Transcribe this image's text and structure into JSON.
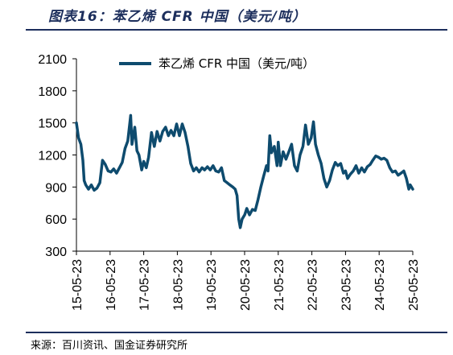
{
  "title": "图表16：苯乙烯 CFR 中国（美元/吨）",
  "source": "来源：百川资讯、国金证券研究所",
  "colors": {
    "line": "#0e4b6e",
    "rule": "#1c2e5c"
  },
  "chart_data": {
    "type": "line",
    "title": "",
    "xlabel": "",
    "ylabel": "",
    "ylim": [
      300,
      2100
    ],
    "yticks": [
      300,
      600,
      900,
      1200,
      1500,
      1800,
      2100
    ],
    "xlim": [
      "15-05-23",
      "25-05-23"
    ],
    "xticks": [
      "15-05-23",
      "16-05-23",
      "17-05-23",
      "18-05-23",
      "19-05-23",
      "20-05-23",
      "21-05-23",
      "22-05-23",
      "23-05-23",
      "24-05-23",
      "25-05-23"
    ],
    "legend_position": "top-left",
    "grid": false,
    "series": [
      {
        "name": "苯乙烯 CFR 中国（美元/吨）",
        "points": [
          [
            "2015-05-23",
            1500
          ],
          [
            "2015-06-15",
            1360
          ],
          [
            "2015-07-10",
            1300
          ],
          [
            "2015-08-01",
            1150
          ],
          [
            "2015-08-15",
            960
          ],
          [
            "2015-09-01",
            920
          ],
          [
            "2015-10-01",
            880
          ],
          [
            "2015-11-01",
            920
          ],
          [
            "2015-12-01",
            870
          ],
          [
            "2016-01-01",
            890
          ],
          [
            "2016-02-01",
            940
          ],
          [
            "2016-03-01",
            1150
          ],
          [
            "2016-04-01",
            1110
          ],
          [
            "2016-05-01",
            1050
          ],
          [
            "2016-06-01",
            1040
          ],
          [
            "2016-07-01",
            1070
          ],
          [
            "2016-08-01",
            1030
          ],
          [
            "2016-09-01",
            1080
          ],
          [
            "2016-10-01",
            1130
          ],
          [
            "2016-11-01",
            1260
          ],
          [
            "2016-12-01",
            1330
          ],
          [
            "2017-01-01",
            1570
          ],
          [
            "2017-01-15",
            1300
          ],
          [
            "2017-02-15",
            1460
          ],
          [
            "2017-03-10",
            1240
          ],
          [
            "2017-04-01",
            1200
          ],
          [
            "2017-05-01",
            1060
          ],
          [
            "2017-05-23",
            1140
          ],
          [
            "2017-06-20",
            1080
          ],
          [
            "2017-07-15",
            1180
          ],
          [
            "2017-08-15",
            1410
          ],
          [
            "2017-09-15",
            1280
          ],
          [
            "2017-10-15",
            1420
          ],
          [
            "2017-11-15",
            1330
          ],
          [
            "2017-12-15",
            1420
          ],
          [
            "2018-01-15",
            1460
          ],
          [
            "2018-02-15",
            1380
          ],
          [
            "2018-03-15",
            1430
          ],
          [
            "2018-04-15",
            1380
          ],
          [
            "2018-05-15",
            1490
          ],
          [
            "2018-06-15",
            1380
          ],
          [
            "2018-07-15",
            1490
          ],
          [
            "2018-08-15",
            1410
          ],
          [
            "2018-09-15",
            1280
          ],
          [
            "2018-10-15",
            1120
          ],
          [
            "2018-11-15",
            1050
          ],
          [
            "2018-12-15",
            1080
          ],
          [
            "2019-01-15",
            1040
          ],
          [
            "2019-02-15",
            1080
          ],
          [
            "2019-03-15",
            1060
          ],
          [
            "2019-04-15",
            1090
          ],
          [
            "2019-05-15",
            1060
          ],
          [
            "2019-06-15",
            1100
          ],
          [
            "2019-07-15",
            1050
          ],
          [
            "2019-08-15",
            1040
          ],
          [
            "2019-09-15",
            1080
          ],
          [
            "2019-10-15",
            960
          ],
          [
            "2019-11-15",
            940
          ],
          [
            "2019-12-15",
            920
          ],
          [
            "2020-01-15",
            900
          ],
          [
            "2020-02-10",
            880
          ],
          [
            "2020-03-01",
            820
          ],
          [
            "2020-03-20",
            600
          ],
          [
            "2020-04-05",
            520
          ],
          [
            "2020-04-25",
            600
          ],
          [
            "2020-05-23",
            640
          ],
          [
            "2020-06-15",
            700
          ],
          [
            "2020-07-15",
            640
          ],
          [
            "2020-08-15",
            690
          ],
          [
            "2020-09-15",
            680
          ],
          [
            "2020-10-15",
            780
          ],
          [
            "2020-11-15",
            900
          ],
          [
            "2020-12-15",
            1000
          ],
          [
            "2021-01-15",
            1100
          ],
          [
            "2021-02-01",
            1050
          ],
          [
            "2021-02-20",
            1380
          ],
          [
            "2021-03-10",
            1220
          ],
          [
            "2021-04-10",
            1280
          ],
          [
            "2021-05-10",
            1100
          ],
          [
            "2021-05-23",
            1320
          ],
          [
            "2021-06-15",
            1100
          ],
          [
            "2021-07-15",
            1230
          ],
          [
            "2021-08-15",
            1160
          ],
          [
            "2021-09-15",
            1230
          ],
          [
            "2021-10-15",
            1300
          ],
          [
            "2021-11-15",
            1100
          ],
          [
            "2021-12-15",
            1050
          ],
          [
            "2022-01-15",
            1200
          ],
          [
            "2022-02-15",
            1280
          ],
          [
            "2022-03-15",
            1480
          ],
          [
            "2022-04-15",
            1300
          ],
          [
            "2022-05-15",
            1360
          ],
          [
            "2022-06-10",
            1510
          ],
          [
            "2022-07-01",
            1300
          ],
          [
            "2022-08-01",
            1200
          ],
          [
            "2022-09-01",
            1120
          ],
          [
            "2022-10-01",
            980
          ],
          [
            "2022-11-01",
            900
          ],
          [
            "2022-12-01",
            960
          ],
          [
            "2023-01-01",
            1060
          ],
          [
            "2023-02-01",
            1130
          ],
          [
            "2023-03-01",
            1100
          ],
          [
            "2023-04-01",
            1120
          ],
          [
            "2023-05-01",
            1030
          ],
          [
            "2023-05-23",
            1050
          ],
          [
            "2023-06-15",
            980
          ],
          [
            "2023-07-15",
            1020
          ],
          [
            "2023-08-15",
            1050
          ],
          [
            "2023-09-15",
            1100
          ],
          [
            "2023-10-15",
            1030
          ],
          [
            "2023-11-15",
            1080
          ],
          [
            "2023-12-15",
            1040
          ],
          [
            "2024-01-15",
            1090
          ],
          [
            "2024-02-15",
            1110
          ],
          [
            "2024-03-15",
            1150
          ],
          [
            "2024-04-15",
            1190
          ],
          [
            "2024-05-15",
            1180
          ],
          [
            "2024-06-15",
            1160
          ],
          [
            "2024-07-15",
            1170
          ],
          [
            "2024-08-15",
            1150
          ],
          [
            "2024-09-15",
            1080
          ],
          [
            "2024-10-15",
            1040
          ],
          [
            "2024-11-15",
            1050
          ],
          [
            "2024-12-15",
            1010
          ],
          [
            "2025-01-15",
            1030
          ],
          [
            "2025-02-15",
            1050
          ],
          [
            "2025-03-15",
            980
          ],
          [
            "2025-04-10",
            880
          ],
          [
            "2025-04-25",
            920
          ],
          [
            "2025-05-23",
            880
          ]
        ]
      }
    ]
  }
}
